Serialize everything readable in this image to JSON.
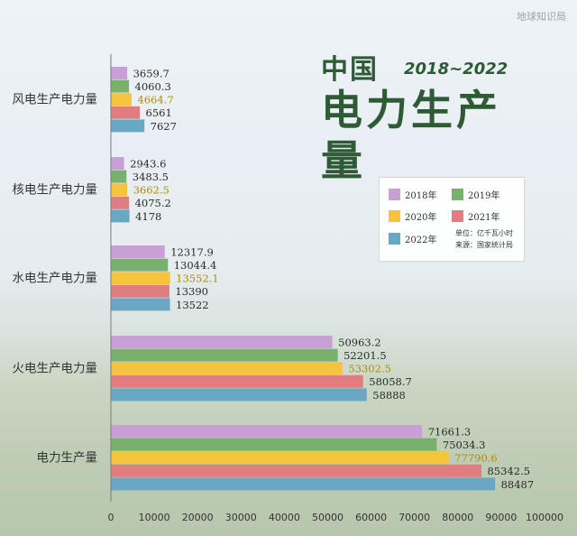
{
  "watermark": "地球知识局",
  "title": {
    "line1": "中国",
    "years": "2018~2022",
    "line2": "电力生产量"
  },
  "legend": {
    "items": [
      "2018年",
      "2019年",
      "2020年",
      "2021年",
      "2022年"
    ],
    "unit": "单位：亿千瓦小时",
    "source": "来源：国家统计局"
  },
  "colors": {
    "2018年": "#c9a0d6",
    "2019年": "#79b06d",
    "2020年": "#f6c43c",
    "2021年": "#e07d80",
    "2022年": "#6aa7c4",
    "label_2020": "#b58a00"
  },
  "chart_data": {
    "type": "bar",
    "orientation": "horizontal",
    "categories": [
      "风电生产电力量",
      "核电生产电力量",
      "水电生产电力量",
      "火电生产电力量",
      "电力生产量"
    ],
    "series": [
      {
        "name": "2018年",
        "values": [
          3659.7,
          2943.6,
          12317.9,
          50963.2,
          71661.3
        ]
      },
      {
        "name": "2019年",
        "values": [
          4060.3,
          3483.5,
          13044.4,
          52201.5,
          75034.3
        ]
      },
      {
        "name": "2020年",
        "values": [
          4664.7,
          3662.5,
          13552.1,
          53302.5,
          77790.6
        ]
      },
      {
        "name": "2021年",
        "values": [
          6561,
          4075.2,
          13390,
          58058.7,
          85342.5
        ]
      },
      {
        "name": "2022年",
        "values": [
          7627,
          4178,
          13522,
          58888,
          88487
        ]
      }
    ],
    "xlim": [
      0,
      100000
    ],
    "xticks": [
      0,
      10000,
      20000,
      30000,
      40000,
      50000,
      60000,
      70000,
      80000,
      90000,
      100000
    ],
    "grid": false,
    "legend_position": "right-middle"
  }
}
